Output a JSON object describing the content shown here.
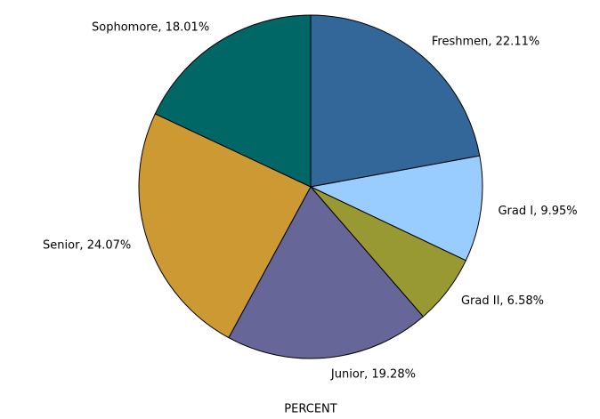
{
  "chart_data": {
    "type": "pie",
    "categories": [
      "Freshmen",
      "Grad I",
      "Grad II",
      "Junior",
      "Senior",
      "Sophomore"
    ],
    "values": [
      22.11,
      9.95,
      6.58,
      19.28,
      24.07,
      18.01
    ],
    "value_labels": [
      "Freshmen, 22.11%",
      "Grad I, 9.95%",
      "Grad II, 6.58%",
      "Junior, 19.28%",
      "Senior, 24.07%",
      "Sophomore, 18.01%"
    ],
    "colors": [
      "#336699",
      "#99ccff",
      "#999933",
      "#666699",
      "#cc9933",
      "#006666"
    ],
    "label": "PERCENT"
  }
}
